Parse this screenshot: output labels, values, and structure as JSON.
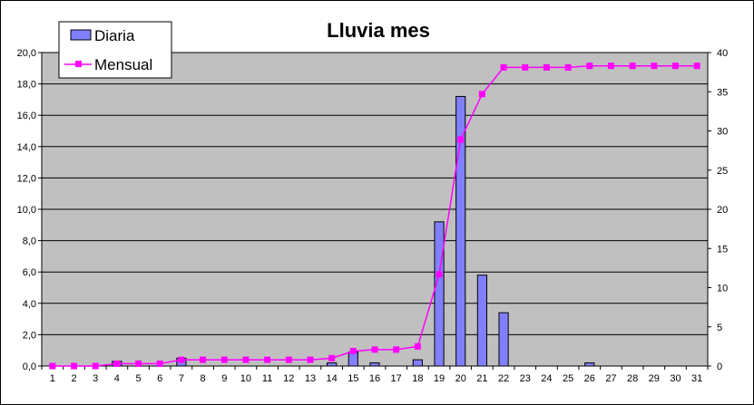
{
  "chart_data": {
    "type": "bar",
    "title": "Lluvia mes",
    "categories": [
      "1",
      "2",
      "3",
      "4",
      "5",
      "6",
      "7",
      "8",
      "9",
      "10",
      "11",
      "12",
      "13",
      "14",
      "15",
      "16",
      "17",
      "18",
      "19",
      "20",
      "21",
      "22",
      "23",
      "24",
      "25",
      "26",
      "27",
      "28",
      "29",
      "30",
      "31"
    ],
    "y_left_ticks": [
      "0,0",
      "2,0",
      "4,0",
      "6,0",
      "8,0",
      "10,0",
      "12,0",
      "14,0",
      "16,0",
      "18,0",
      "20,0"
    ],
    "y_right_ticks": [
      "0",
      "5",
      "10",
      "15",
      "20",
      "25",
      "30",
      "35",
      "40"
    ],
    "ylim_left": [
      0,
      20
    ],
    "ylim_right": [
      0,
      40
    ],
    "grid": true,
    "legend_position": "top-left",
    "series": [
      {
        "name": "Diaria",
        "type": "bar",
        "axis": "left",
        "color": "#8080ff",
        "values": [
          0,
          0,
          0,
          0.3,
          0,
          0,
          0.5,
          0,
          0,
          0,
          0,
          0,
          0,
          0.2,
          0.9,
          0.2,
          0,
          0.4,
          9.2,
          17.2,
          5.8,
          3.4,
          0,
          0,
          0,
          0.2,
          0,
          0,
          0,
          0,
          0
        ]
      },
      {
        "name": "Mensual",
        "type": "line",
        "axis": "right",
        "color": "#ff00ff",
        "values": [
          0,
          0,
          0,
          0.3,
          0.3,
          0.3,
          0.8,
          0.8,
          0.8,
          0.8,
          0.8,
          0.8,
          0.8,
          1.0,
          1.9,
          2.1,
          2.1,
          2.5,
          11.7,
          28.9,
          34.7,
          38.1,
          38.1,
          38.1,
          38.1,
          38.3,
          38.3,
          38.3,
          38.3,
          38.3,
          38.3
        ]
      }
    ]
  }
}
